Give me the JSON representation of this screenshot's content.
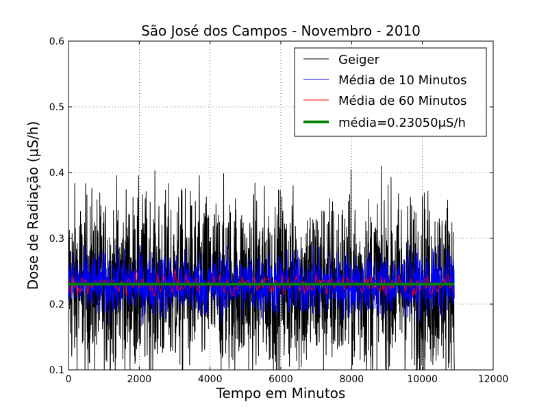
{
  "chart_data": {
    "type": "line",
    "title": "São José dos Campos - Novembro - 2010",
    "xlabel": "Tempo em Minutos",
    "ylabel": "Dose de Radiação (μS/h)",
    "xlim": [
      0,
      12000
    ],
    "ylim": [
      0.1,
      0.6
    ],
    "x_ticks": [
      0,
      2000,
      4000,
      6000,
      8000,
      10000,
      12000
    ],
    "y_ticks": [
      0.1,
      0.2,
      0.3,
      0.4,
      0.5,
      0.6
    ],
    "x_tick_labels": [
      "0",
      "2000",
      "4000",
      "6000",
      "8000",
      "10000",
      "12000"
    ],
    "y_tick_labels": [
      "0.1",
      "0.2",
      "0.3",
      "0.4",
      "0.5",
      "0.6"
    ],
    "grid": true,
    "legend_position": "top-right",
    "x_range_data": [
      0,
      10900
    ],
    "series": [
      {
        "name": "Geiger",
        "color": "#000000",
        "center": 0.23,
        "spread_min": 0.1,
        "spread_max": 0.41
      },
      {
        "name": "Média de 10 Minutos",
        "color": "#0000ff",
        "center": 0.23,
        "spread_min": 0.17,
        "spread_max": 0.29
      },
      {
        "name": "Média de 60 Minutos",
        "color": "#ff0000",
        "center": 0.23,
        "spread_min": 0.21,
        "spread_max": 0.255
      },
      {
        "name": "média=0.23050μS/h",
        "color": "#008000",
        "value": 0.2305
      }
    ]
  }
}
